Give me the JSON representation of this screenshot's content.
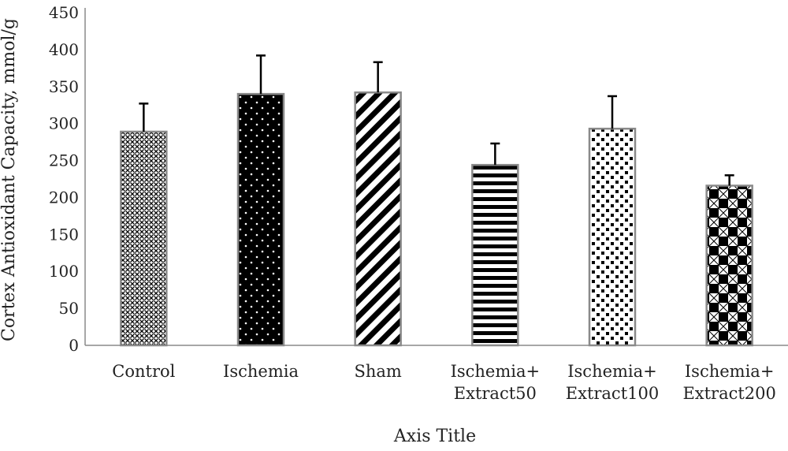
{
  "chart_data": {
    "type": "bar",
    "title": "",
    "xlabel": "Axis Title",
    "ylabel": "Cortex Antioxidant Capacity, mmol/g",
    "ylim": [
      0,
      450
    ],
    "yticks": [
      0,
      50,
      100,
      150,
      200,
      250,
      300,
      350,
      400,
      450
    ],
    "grid": false,
    "categories": [
      [
        "Control"
      ],
      [
        "Ischemia"
      ],
      [
        "Sham"
      ],
      [
        "Ischemia+",
        "Extract50"
      ],
      [
        "Ischemia+",
        "Extract100"
      ],
      [
        "Ischemia+",
        "Extract200"
      ]
    ],
    "values": [
      289,
      340,
      342,
      244,
      293,
      216
    ],
    "errors": [
      38,
      52,
      41,
      29,
      44,
      14
    ],
    "patterns": [
      "crosshatch-dots",
      "black-dots",
      "diagonal-stripes",
      "horizontal-stripes",
      "scattered-squares",
      "checkerboard"
    ],
    "colors": {
      "bar_border": "#8a8a8a",
      "ink": "#000000",
      "axis": "#8a8a8a"
    }
  }
}
